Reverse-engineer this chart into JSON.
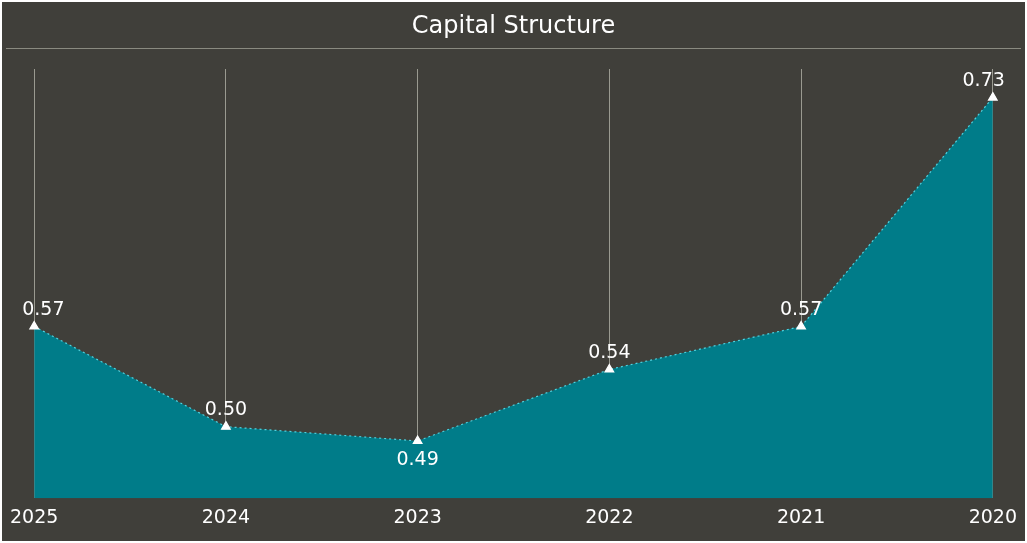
{
  "chart_data": {
    "type": "area",
    "title": "Capital Structure",
    "categories": [
      "2025",
      "2024",
      "2023",
      "2022",
      "2021",
      "2020"
    ],
    "series": [
      {
        "color": "#007c89",
        "values": [
          0.57,
          0.5,
          0.49,
          0.54,
          0.57,
          0.73
        ],
        "value_labels": [
          "0.57",
          "0.50",
          "0.49",
          "0.54",
          "0.57",
          "0.73"
        ]
      }
    ],
    "ylim": [
      0.45,
      0.75
    ],
    "tick_labels": "x",
    "grid": "x",
    "marker": "triangle",
    "line_style": "dotted"
  }
}
